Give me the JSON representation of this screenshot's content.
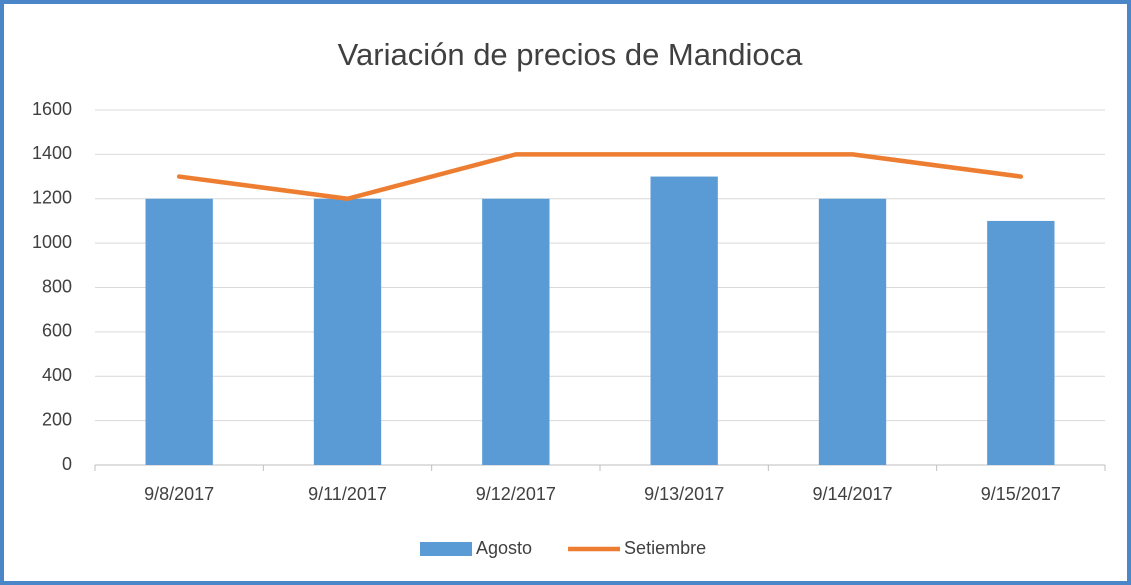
{
  "chart_data": {
    "type": "bar",
    "title": "Variación de precios de Mandioca",
    "categories": [
      "9/8/2017",
      "9/11/2017",
      "9/12/2017",
      "9/13/2017",
      "9/14/2017",
      "9/15/2017"
    ],
    "series": [
      {
        "name": "Agosto",
        "type": "bar",
        "color": "#5b9bd5",
        "values": [
          1200,
          1200,
          1200,
          1300,
          1200,
          1100
        ]
      },
      {
        "name": "Setiembre",
        "type": "line",
        "color": "#ed7d31",
        "values": [
          1300,
          1200,
          1400,
          1400,
          1400,
          1300
        ]
      }
    ],
    "ylim": [
      0,
      1600
    ],
    "yticks": [
      0,
      200,
      400,
      600,
      800,
      1000,
      1200,
      1400,
      1600
    ],
    "grid": true,
    "legend": "bottom"
  }
}
